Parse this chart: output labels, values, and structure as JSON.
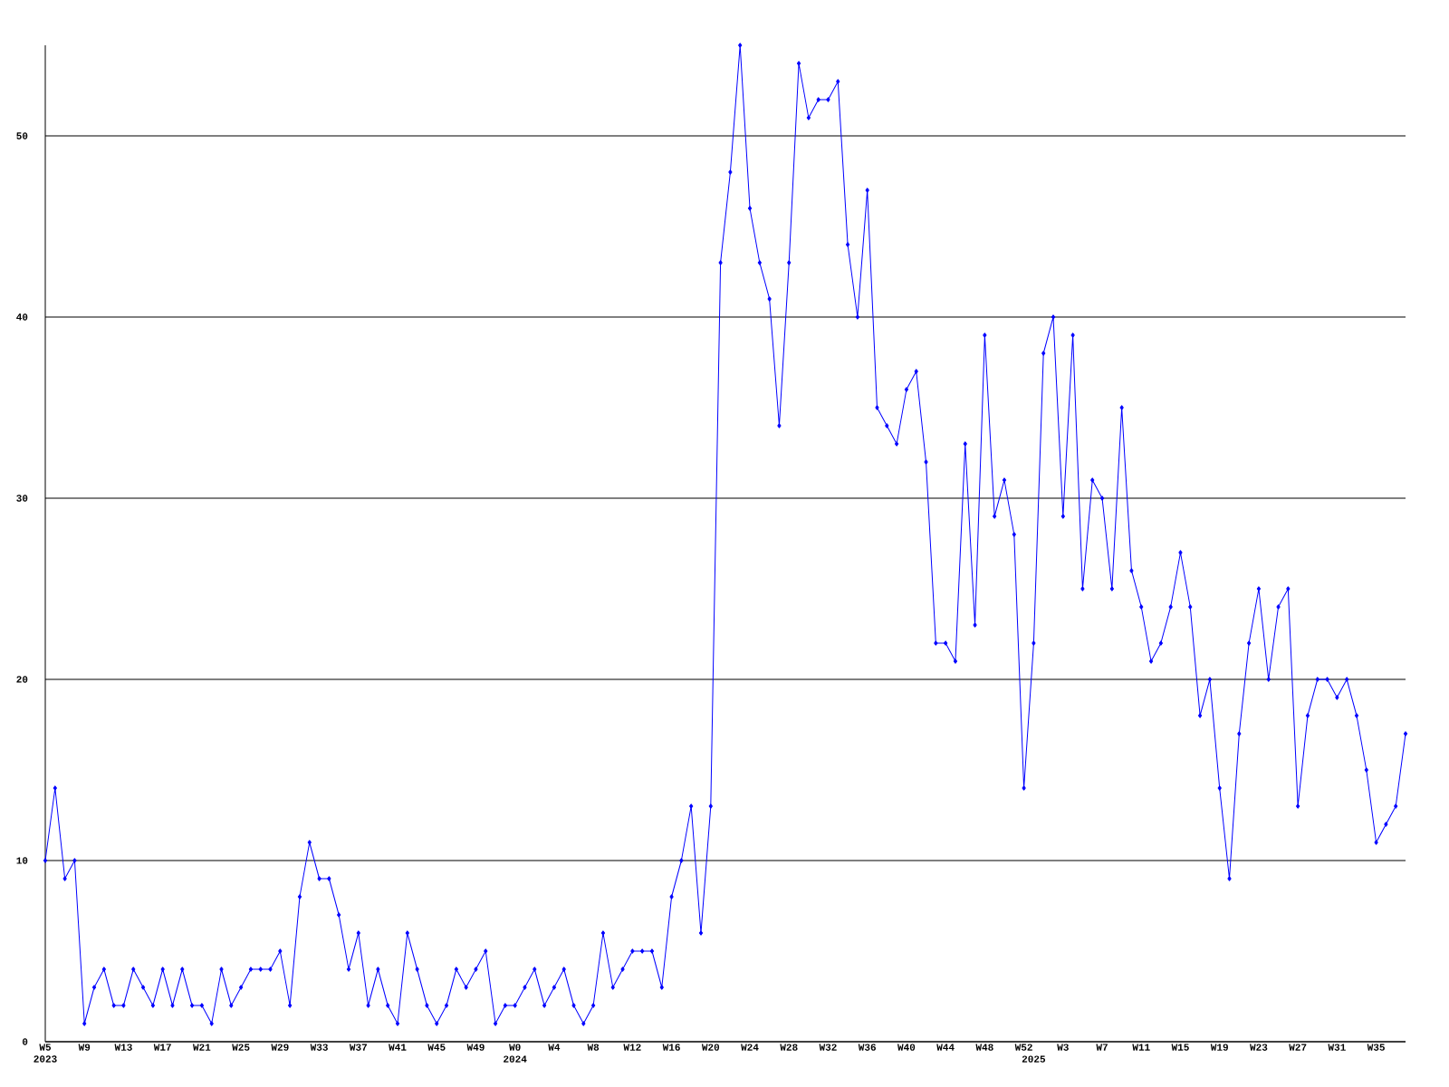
{
  "chart_data": {
    "type": "line",
    "color": "#0000ff",
    "marker": "diamond",
    "line_style": "solid",
    "grid": "y",
    "ylim": [
      0,
      55
    ],
    "yticks": [
      0,
      10,
      20,
      30,
      40,
      50
    ],
    "categories": [
      "W5 2023",
      null,
      null,
      null,
      "W9",
      null,
      null,
      null,
      "W13",
      null,
      null,
      null,
      "W17",
      null,
      null,
      null,
      "W21",
      null,
      null,
      null,
      "W25",
      null,
      null,
      null,
      "W29",
      null,
      null,
      null,
      "W33",
      null,
      null,
      null,
      "W37",
      null,
      null,
      null,
      "W41",
      null,
      null,
      null,
      "W45",
      null,
      null,
      null,
      "W49",
      null,
      null,
      null,
      "W0 2024",
      null,
      null,
      null,
      "W4",
      null,
      null,
      null,
      "W8",
      null,
      null,
      null,
      "W12",
      null,
      null,
      null,
      "W16",
      null,
      null,
      null,
      "W20",
      null,
      null,
      null,
      "W24",
      null,
      null,
      null,
      "W28",
      null,
      null,
      null,
      "W32",
      null,
      null,
      null,
      "W36",
      null,
      null,
      null,
      "W40",
      null,
      null,
      null,
      "W44",
      null,
      null,
      null,
      "W48",
      null,
      null,
      null,
      "W52",
      "2025",
      null,
      null,
      "W3",
      null,
      null,
      null,
      "W7",
      null,
      null,
      null,
      "W11",
      null,
      null,
      null,
      "W15",
      null,
      null,
      null,
      "W19",
      null,
      null,
      null,
      "W23",
      null,
      null,
      null,
      "W27",
      null,
      null,
      null,
      "W31",
      null,
      null,
      null,
      "W35",
      null,
      null,
      null
    ],
    "values": [
      10,
      14,
      9,
      10,
      1,
      3,
      4,
      2,
      2,
      4,
      3,
      2,
      4,
      2,
      4,
      2,
      2,
      1,
      4,
      2,
      3,
      4,
      4,
      4,
      5,
      2,
      8,
      11,
      9,
      9,
      7,
      4,
      6,
      2,
      4,
      2,
      1,
      6,
      4,
      2,
      1,
      2,
      4,
      3,
      4,
      5,
      1,
      2,
      2,
      3,
      4,
      2,
      3,
      4,
      2,
      1,
      2,
      6,
      3,
      4,
      5,
      5,
      5,
      3,
      8,
      10,
      13,
      6,
      13,
      43,
      48,
      55,
      46,
      43,
      41,
      34,
      43,
      54,
      51,
      52,
      52,
      53,
      44,
      40,
      47,
      35,
      34,
      33,
      36,
      37,
      32,
      22,
      22,
      21,
      33,
      23,
      39,
      29,
      31,
      28,
      14,
      22,
      38,
      40,
      29,
      39,
      25,
      31,
      30,
      25,
      35,
      26,
      24,
      21,
      22,
      24,
      27,
      24,
      18,
      20,
      14,
      9,
      17,
      22,
      25,
      20,
      24,
      25,
      13,
      18,
      20,
      20,
      19,
      20,
      18,
      15,
      11,
      12,
      13,
      17
    ]
  }
}
